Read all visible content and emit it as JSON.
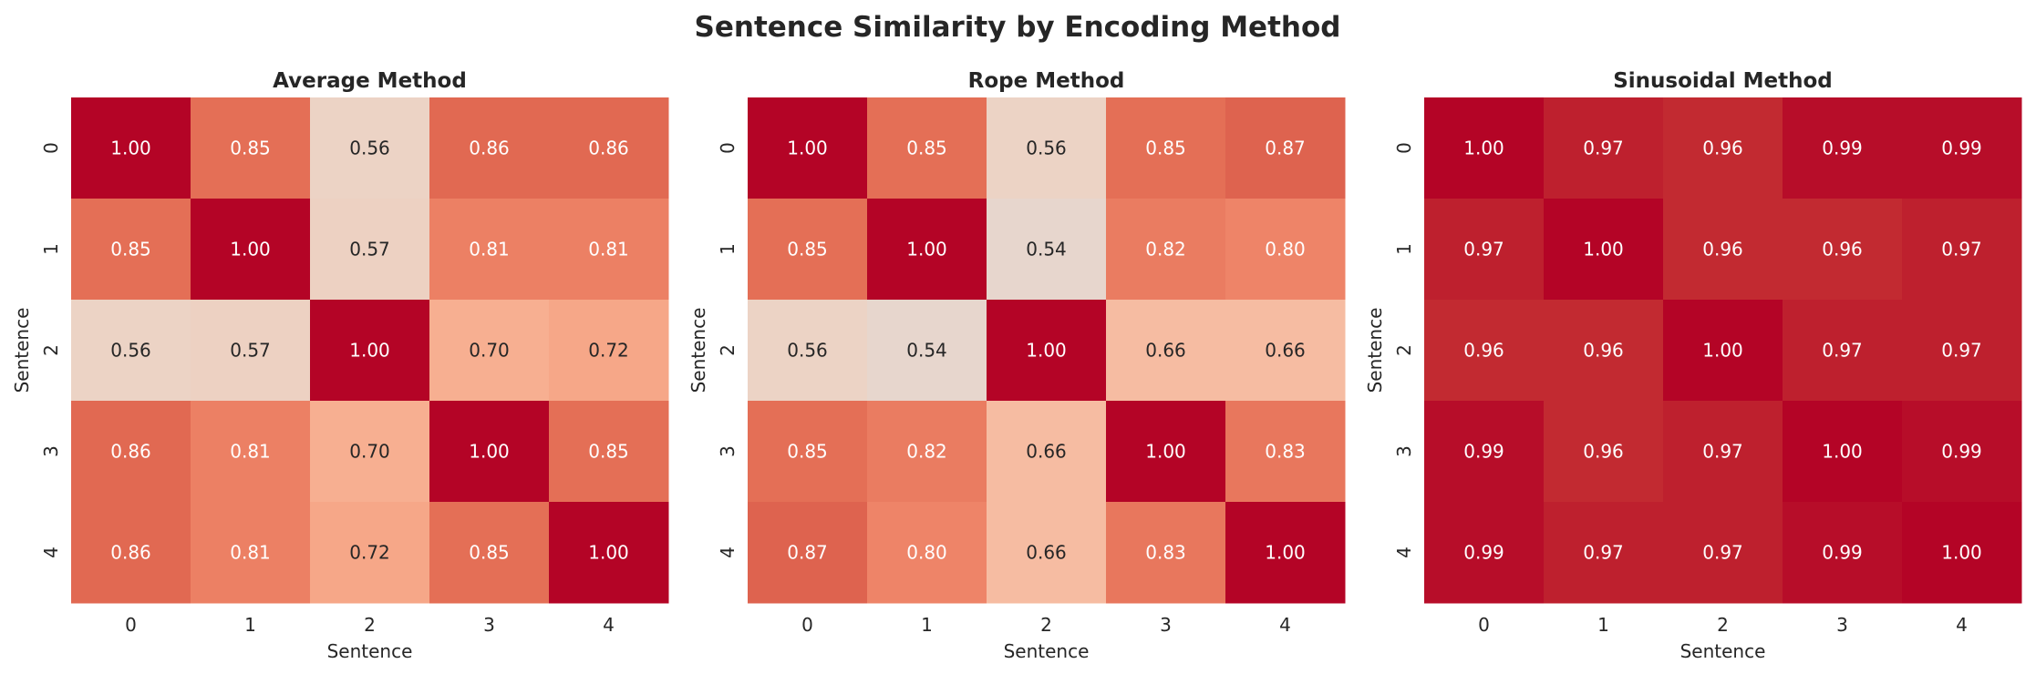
{
  "chart_data": {
    "type": "heatmap",
    "title": "Sentence Similarity by Encoding Method",
    "colormap": "coolwarm",
    "vmin": 0,
    "vmax": 1,
    "colorbar": false,
    "annotation_format": "0.00",
    "panels": [
      {
        "title": "Average Method",
        "xlabel": "Sentence",
        "ylabel": "Sentence",
        "xticks": [
          "0",
          "1",
          "2",
          "3",
          "4"
        ],
        "yticks": [
          "0",
          "1",
          "2",
          "3",
          "4"
        ],
        "values": [
          [
            1.0,
            0.85,
            0.56,
            0.86,
            0.86
          ],
          [
            0.85,
            1.0,
            0.57,
            0.81,
            0.81
          ],
          [
            0.56,
            0.57,
            1.0,
            0.7,
            0.72
          ],
          [
            0.86,
            0.81,
            0.7,
            1.0,
            0.85
          ],
          [
            0.86,
            0.81,
            0.72,
            0.85,
            1.0
          ]
        ]
      },
      {
        "title": "Rope Method",
        "xlabel": "Sentence",
        "ylabel": "Sentence",
        "xticks": [
          "0",
          "1",
          "2",
          "3",
          "4"
        ],
        "yticks": [
          "0",
          "1",
          "2",
          "3",
          "4"
        ],
        "values": [
          [
            1.0,
            0.85,
            0.56,
            0.85,
            0.87
          ],
          [
            0.85,
            1.0,
            0.54,
            0.82,
            0.8
          ],
          [
            0.56,
            0.54,
            1.0,
            0.66,
            0.66
          ],
          [
            0.85,
            0.82,
            0.66,
            1.0,
            0.83
          ],
          [
            0.87,
            0.8,
            0.66,
            0.83,
            1.0
          ]
        ]
      },
      {
        "title": "Sinusoidal Method",
        "xlabel": "Sentence",
        "ylabel": "Sentence",
        "xticks": [
          "0",
          "1",
          "2",
          "3",
          "4"
        ],
        "yticks": [
          "0",
          "1",
          "2",
          "3",
          "4"
        ],
        "values": [
          [
            1.0,
            0.97,
            0.96,
            0.99,
            0.99
          ],
          [
            0.97,
            1.0,
            0.96,
            0.96,
            0.97
          ],
          [
            0.96,
            0.96,
            1.0,
            0.97,
            0.97
          ],
          [
            0.99,
            0.96,
            0.97,
            1.0,
            0.99
          ],
          [
            0.99,
            0.97,
            0.97,
            0.99,
            1.0
          ]
        ]
      }
    ]
  }
}
